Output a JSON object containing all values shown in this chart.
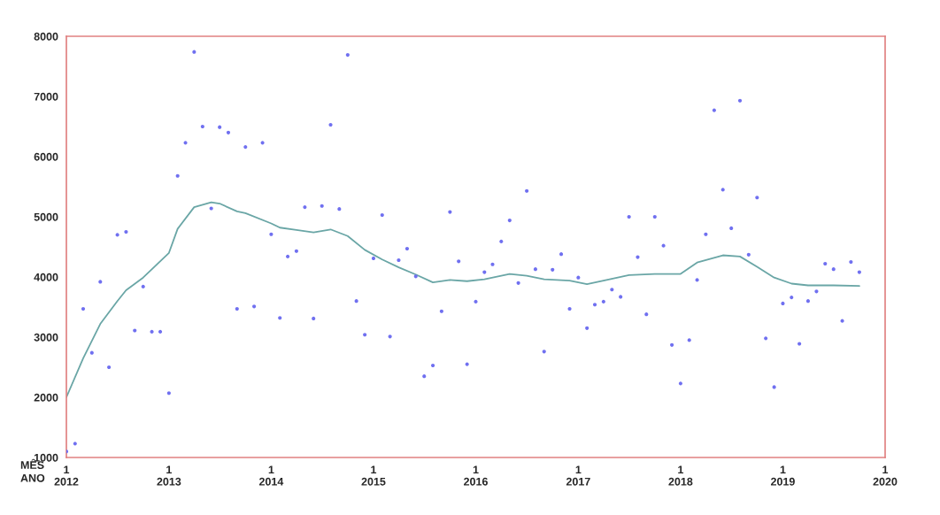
{
  "chart_data": {
    "type": "scatter",
    "xlim": [
      "2012-01",
      "2020-01"
    ],
    "xticks": [
      {
        "value": "2012-01",
        "label": "1\n2012"
      },
      {
        "value": "2013-01",
        "label": "1\n2013"
      },
      {
        "value": "2014-01",
        "label": "1\n2014"
      },
      {
        "value": "2015-01",
        "label": "1\n2015"
      },
      {
        "value": "2016-01",
        "label": "1\n2016"
      },
      {
        "value": "2017-01",
        "label": "1\n2017"
      },
      {
        "value": "2018-01",
        "label": "1\n2018"
      },
      {
        "value": "2019-01",
        "label": "1\n2019"
      },
      {
        "value": "2020-01",
        "label": "1\n2020"
      }
    ],
    "ylim": [
      1000,
      8000
    ],
    "yticks": [
      1000,
      2000,
      3000,
      4000,
      5000,
      6000,
      7000,
      8000
    ],
    "grid": false,
    "legend": false,
    "annotations": [
      "MÊS",
      "ANO"
    ],
    "series": [
      {
        "color": "#7070f0",
        "marker": "circle",
        "x": [
          "2012-01",
          "2012-02",
          "2012-03",
          "2012-04",
          "2012-05",
          "2012-06",
          "2012-07",
          "2012-08",
          "2012-09",
          "2012-10",
          "2012-11",
          "2012-12",
          "2013-01",
          "2013-02",
          "2013-03",
          "2013-04",
          "2013-05",
          "2013-06",
          "2013-07",
          "2013-08",
          "2013-09",
          "2013-10",
          "2013-11",
          "2013-12",
          "2014-01",
          "2014-02",
          "2014-03",
          "2014-04",
          "2014-05",
          "2014-06",
          "2014-07",
          "2014-08",
          "2014-09",
          "2014-10",
          "2014-11",
          "2014-12",
          "2015-01",
          "2015-02",
          "2015-03",
          "2015-04",
          "2015-05",
          "2015-06",
          "2015-07",
          "2015-08",
          "2015-09",
          "2015-10",
          "2015-11",
          "2015-12",
          "2016-01",
          "2016-02",
          "2016-03",
          "2016-04",
          "2016-05",
          "2016-06",
          "2016-07",
          "2016-08",
          "2016-09",
          "2016-10",
          "2016-11",
          "2016-12",
          "2017-01",
          "2017-02",
          "2017-03",
          "2017-04",
          "2017-05",
          "2017-06",
          "2017-07",
          "2017-08",
          "2017-09",
          "2017-10",
          "2017-11",
          "2017-12",
          "2018-01",
          "2018-02",
          "2018-03",
          "2018-04",
          "2018-05",
          "2018-06",
          "2018-07",
          "2018-08",
          "2018-09",
          "2018-10",
          "2018-11",
          "2018-12",
          "2019-01",
          "2019-02",
          "2019-03",
          "2019-04",
          "2019-05",
          "2019-06",
          "2019-07",
          "2019-08",
          "2019-09",
          "2019-10"
        ],
        "values": [
          1100,
          1230,
          3470,
          2740,
          3920,
          2500,
          4700,
          4750,
          3110,
          3840,
          3090,
          3090,
          2070,
          5680,
          6230,
          7740,
          6500,
          5140,
          6490,
          6400,
          3470,
          6160,
          3510,
          6230,
          4710,
          3320,
          4340,
          4430,
          5160,
          3310,
          5180,
          6530,
          5130,
          7690,
          3600,
          3040,
          4310,
          5030,
          3010,
          4280,
          4470,
          4010,
          2350,
          2530,
          3430,
          5080,
          4260,
          2550,
          3590,
          4080,
          4210,
          4590,
          4940,
          3900,
          5430,
          4130,
          2760,
          4120,
          4380,
          3470,
          3990,
          3150,
          3540,
          3590,
          3790,
          3670,
          5000,
          4330,
          3380,
          5000,
          4520,
          2870,
          2230,
          2950,
          3950,
          4710,
          6770,
          5450,
          4810,
          6930,
          4370,
          5320,
          2980,
          2170,
          3560,
          3660,
          2890,
          3600,
          3760,
          4220,
          4130,
          3270,
          4250,
          4080
        ]
      },
      {
        "type": "line",
        "color": "#6aa6a6",
        "marker": "none",
        "line_style": "solid",
        "x": [
          "2012-01",
          "2012-03",
          "2012-05",
          "2012-07",
          "2012-08",
          "2012-10",
          "2013-01",
          "2013-02",
          "2013-04",
          "2013-06",
          "2013-07",
          "2013-09",
          "2013-10",
          "2014-01",
          "2014-02",
          "2014-04",
          "2014-06",
          "2014-08",
          "2014-10",
          "2014-12",
          "2015-02",
          "2015-04",
          "2015-06",
          "2015-08",
          "2015-10",
          "2015-12",
          "2016-02",
          "2016-05",
          "2016-07",
          "2016-09",
          "2016-12",
          "2017-02",
          "2017-04",
          "2017-07",
          "2017-10",
          "2018-01",
          "2018-03",
          "2018-06",
          "2018-08",
          "2018-10",
          "2018-12",
          "2019-02",
          "2019-04",
          "2019-07",
          "2019-10"
        ],
        "values": [
          2000,
          2650,
          3220,
          3600,
          3780,
          3990,
          4400,
          4800,
          5160,
          5240,
          5220,
          5090,
          5060,
          4890,
          4820,
          4780,
          4740,
          4790,
          4680,
          4450,
          4290,
          4160,
          4040,
          3910,
          3950,
          3930,
          3960,
          4050,
          4020,
          3960,
          3940,
          3880,
          3940,
          4030,
          4050,
          4050,
          4240,
          4360,
          4340,
          4170,
          3990,
          3890,
          3860,
          3860,
          3850
        ]
      }
    ]
  }
}
